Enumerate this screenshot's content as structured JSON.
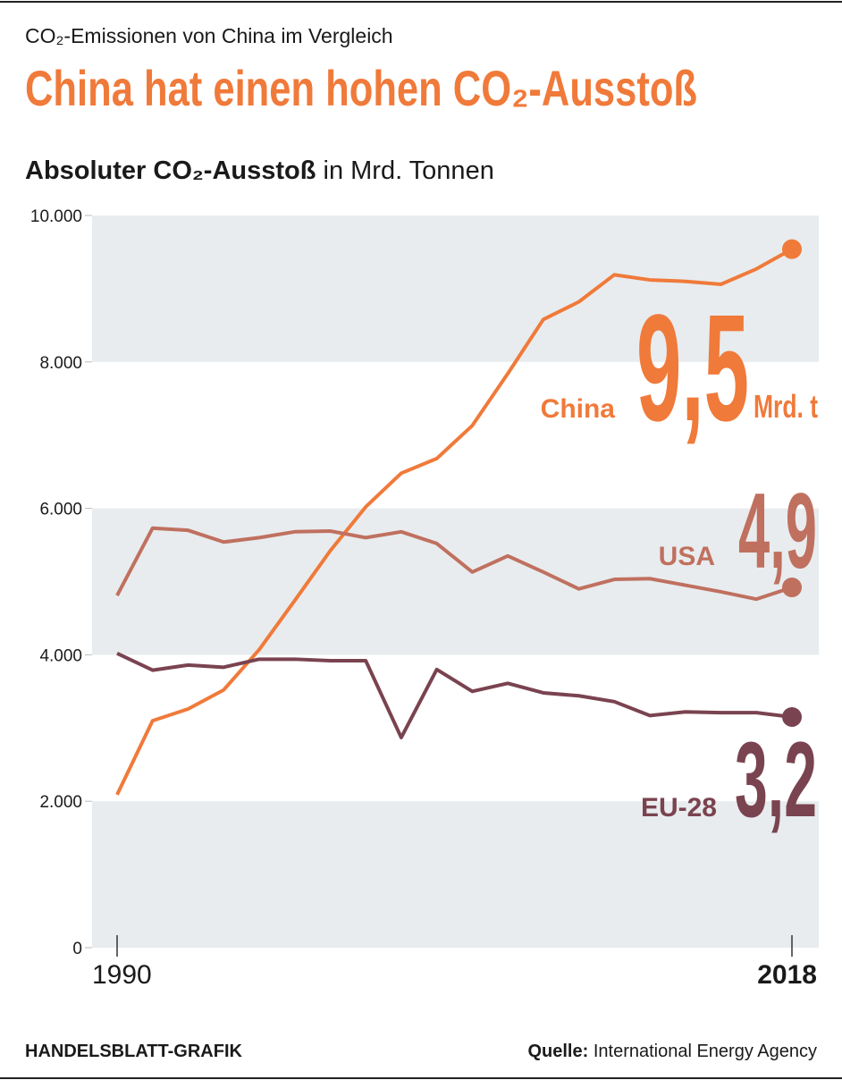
{
  "header": {
    "kicker": "CO₂-Emissionen von China im Vergleich",
    "title": "China hat einen hohen CO₂-Ausstoß"
  },
  "chart_data": {
    "type": "line",
    "axis_label": {
      "bold": "Absoluter CO₂-Ausstoß",
      "rest": "in Mrd. Tonnen"
    },
    "categories": [
      "1990",
      null,
      null,
      null,
      null,
      null,
      null,
      null,
      null,
      null,
      null,
      null,
      null,
      null,
      null,
      null,
      null,
      null,
      null,
      "2018"
    ],
    "ylim": [
      0,
      10000
    ],
    "yticks": [
      0,
      {
        "value": 2000,
        "label": "2.000"
      },
      {
        "value": 4000,
        "label": "4.000"
      },
      {
        "value": 6000,
        "label": "6.000"
      },
      {
        "value": 8000,
        "label": "8.000"
      },
      {
        "value": 10000,
        "label": "10.000"
      }
    ],
    "bands": true,
    "series": [
      {
        "name": "China",
        "color": "#f07a3a",
        "values": [
          2090,
          3100,
          3260,
          3520,
          4070,
          4740,
          5420,
          6020,
          6480,
          6680,
          7130,
          7840,
          8580,
          8820,
          9190,
          9120,
          9100,
          9060,
          9270,
          9540
        ],
        "value_labels": [
          null,
          null,
          null,
          null,
          null,
          null,
          null,
          null,
          null,
          null,
          null,
          null,
          null,
          null,
          null,
          null,
          null,
          null,
          null,
          "9,5"
        ],
        "unit": "Mrd. t"
      },
      {
        "name": "USA",
        "color": "#c0705f",
        "values": [
          4810,
          5730,
          5700,
          5540,
          5600,
          5680,
          5690,
          5600,
          5680,
          5520,
          5130,
          5350,
          5130,
          4900,
          5030,
          5040,
          4950,
          4860,
          4760,
          4920
        ],
        "value_labels": [
          null,
          null,
          null,
          null,
          null,
          null,
          null,
          null,
          null,
          null,
          null,
          null,
          null,
          null,
          null,
          null,
          null,
          null,
          null,
          "4,9"
        ]
      },
      {
        "name": "EU-28",
        "color": "#7a4350",
        "values": [
          4020,
          3790,
          3860,
          3830,
          3940,
          3940,
          3920,
          3920,
          2870,
          3800,
          3500,
          3610,
          3480,
          3440,
          3360,
          3170,
          3220,
          3210,
          3210,
          3150
        ],
        "value_labels": [
          null,
          null,
          null,
          null,
          null,
          null,
          null,
          null,
          null,
          null,
          null,
          null,
          null,
          null,
          null,
          null,
          null,
          null,
          null,
          "3,2"
        ]
      }
    ]
  },
  "footer": {
    "credit": "HANDELSBLATT-GRAFIK",
    "source_label": "Quelle:",
    "source": "International Energy Agency"
  }
}
